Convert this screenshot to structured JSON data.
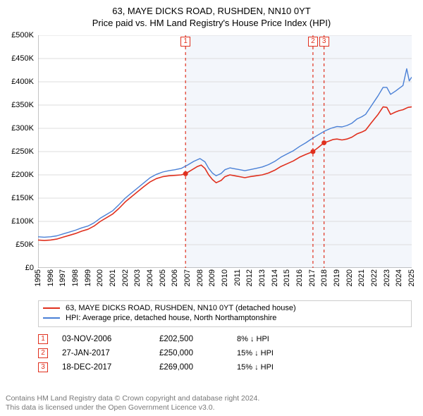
{
  "title": "63, MAYE DICKS ROAD, RUSHDEN, NN10 0YT",
  "subtitle": "Price paid vs. HM Land Registry's House Price Index (HPI)",
  "chart": {
    "type": "line",
    "x_index_min": 0,
    "x_index_max": 30,
    "ylim": [
      0,
      500000
    ],
    "ytick_step": 50000,
    "x_ticks": [
      "1995",
      "1996",
      "1997",
      "1998",
      "1999",
      "2000",
      "2001",
      "2002",
      "2003",
      "2004",
      "2005",
      "2006",
      "2007",
      "2008",
      "2009",
      "2010",
      "2011",
      "2012",
      "2013",
      "2014",
      "2015",
      "2016",
      "2017",
      "2018",
      "2019",
      "2020",
      "2021",
      "2022",
      "2023",
      "2024",
      "2025"
    ],
    "y_tick_labels": [
      "£0",
      "£50K",
      "£100K",
      "£150K",
      "£200K",
      "£250K",
      "£300K",
      "£350K",
      "£400K",
      "£450K",
      "£500K"
    ],
    "background_color": "#ffffff",
    "grid_color": "#dcdcdc",
    "axis_color": "#888888",
    "plotband": {
      "from_index": 11.8,
      "to_index": 30,
      "fill": "#f3f6fb"
    },
    "markers": [
      {
        "label": "1",
        "x_index": 11.84,
        "sale_y": 202500,
        "color": "#e0301e"
      },
      {
        "label": "2",
        "x_index": 22.07,
        "sale_y": 250000,
        "color": "#e0301e"
      },
      {
        "label": "3",
        "x_index": 22.96,
        "sale_y": 269000,
        "color": "#e0301e"
      }
    ],
    "series": [
      {
        "name": "63, MAYE DICKS ROAD, RUSHDEN, NN10 0YT (detached house)",
        "color": "#e0301e",
        "line_width": 1.6,
        "points": [
          {
            "x": 0.0,
            "y": 60000
          },
          {
            "x": 0.5,
            "y": 59000
          },
          {
            "x": 1.0,
            "y": 60000
          },
          {
            "x": 1.5,
            "y": 62000
          },
          {
            "x": 2.0,
            "y": 66000
          },
          {
            "x": 2.5,
            "y": 70000
          },
          {
            "x": 3.0,
            "y": 74000
          },
          {
            "x": 3.5,
            "y": 79000
          },
          {
            "x": 4.0,
            "y": 83000
          },
          {
            "x": 4.5,
            "y": 90000
          },
          {
            "x": 5.0,
            "y": 100000
          },
          {
            "x": 5.5,
            "y": 108000
          },
          {
            "x": 6.0,
            "y": 116000
          },
          {
            "x": 6.5,
            "y": 128000
          },
          {
            "x": 7.0,
            "y": 142000
          },
          {
            "x": 7.5,
            "y": 153000
          },
          {
            "x": 8.0,
            "y": 164000
          },
          {
            "x": 8.5,
            "y": 175000
          },
          {
            "x": 9.0,
            "y": 185000
          },
          {
            "x": 9.5,
            "y": 192000
          },
          {
            "x": 10.0,
            "y": 196000
          },
          {
            "x": 10.5,
            "y": 198000
          },
          {
            "x": 11.0,
            "y": 199000
          },
          {
            "x": 11.5,
            "y": 200000
          },
          {
            "x": 11.84,
            "y": 202500
          },
          {
            "x": 12.3,
            "y": 210000
          },
          {
            "x": 12.8,
            "y": 218000
          },
          {
            "x": 13.1,
            "y": 221000
          },
          {
            "x": 13.4,
            "y": 214000
          },
          {
            "x": 13.7,
            "y": 200000
          },
          {
            "x": 14.0,
            "y": 190000
          },
          {
            "x": 14.3,
            "y": 183000
          },
          {
            "x": 14.7,
            "y": 188000
          },
          {
            "x": 15.0,
            "y": 196000
          },
          {
            "x": 15.4,
            "y": 200000
          },
          {
            "x": 15.8,
            "y": 198000
          },
          {
            "x": 16.2,
            "y": 196000
          },
          {
            "x": 16.6,
            "y": 194000
          },
          {
            "x": 17.0,
            "y": 196000
          },
          {
            "x": 17.5,
            "y": 198000
          },
          {
            "x": 18.0,
            "y": 200000
          },
          {
            "x": 18.5,
            "y": 204000
          },
          {
            "x": 19.0,
            "y": 210000
          },
          {
            "x": 19.5,
            "y": 218000
          },
          {
            "x": 20.0,
            "y": 224000
          },
          {
            "x": 20.5,
            "y": 230000
          },
          {
            "x": 21.0,
            "y": 238000
          },
          {
            "x": 21.5,
            "y": 244000
          },
          {
            "x": 22.07,
            "y": 250000
          },
          {
            "x": 22.5,
            "y": 259000
          },
          {
            "x": 22.96,
            "y": 269000
          },
          {
            "x": 23.3,
            "y": 272000
          },
          {
            "x": 23.7,
            "y": 276000
          },
          {
            "x": 24.0,
            "y": 277000
          },
          {
            "x": 24.4,
            "y": 275000
          },
          {
            "x": 24.8,
            "y": 277000
          },
          {
            "x": 25.2,
            "y": 281000
          },
          {
            "x": 25.6,
            "y": 288000
          },
          {
            "x": 26.0,
            "y": 292000
          },
          {
            "x": 26.3,
            "y": 296000
          },
          {
            "x": 26.7,
            "y": 310000
          },
          {
            "x": 27.0,
            "y": 320000
          },
          {
            "x": 27.3,
            "y": 330000
          },
          {
            "x": 27.7,
            "y": 346000
          },
          {
            "x": 28.0,
            "y": 345000
          },
          {
            "x": 28.3,
            "y": 330000
          },
          {
            "x": 28.7,
            "y": 335000
          },
          {
            "x": 29.0,
            "y": 338000
          },
          {
            "x": 29.3,
            "y": 340000
          },
          {
            "x": 29.7,
            "y": 345000
          },
          {
            "x": 30.0,
            "y": 346000
          }
        ]
      },
      {
        "name": "HPI: Average price, detached house, North Northamptonshire",
        "color": "#4a80d6",
        "line_width": 1.4,
        "points": [
          {
            "x": 0.0,
            "y": 67000
          },
          {
            "x": 0.5,
            "y": 66000
          },
          {
            "x": 1.0,
            "y": 67000
          },
          {
            "x": 1.5,
            "y": 69000
          },
          {
            "x": 2.0,
            "y": 73000
          },
          {
            "x": 2.5,
            "y": 77000
          },
          {
            "x": 3.0,
            "y": 81000
          },
          {
            "x": 3.5,
            "y": 86000
          },
          {
            "x": 4.0,
            "y": 90000
          },
          {
            "x": 4.5,
            "y": 97000
          },
          {
            "x": 5.0,
            "y": 107000
          },
          {
            "x": 5.5,
            "y": 115000
          },
          {
            "x": 6.0,
            "y": 123000
          },
          {
            "x": 6.5,
            "y": 136000
          },
          {
            "x": 7.0,
            "y": 150000
          },
          {
            "x": 7.5,
            "y": 161000
          },
          {
            "x": 8.0,
            "y": 172000
          },
          {
            "x": 8.5,
            "y": 183000
          },
          {
            "x": 9.0,
            "y": 194000
          },
          {
            "x": 9.5,
            "y": 201000
          },
          {
            "x": 10.0,
            "y": 206000
          },
          {
            "x": 10.5,
            "y": 209000
          },
          {
            "x": 11.0,
            "y": 211000
          },
          {
            "x": 11.5,
            "y": 214000
          },
          {
            "x": 12.0,
            "y": 221000
          },
          {
            "x": 12.5,
            "y": 229000
          },
          {
            "x": 13.0,
            "y": 235000
          },
          {
            "x": 13.4,
            "y": 228000
          },
          {
            "x": 13.7,
            "y": 214000
          },
          {
            "x": 14.0,
            "y": 204000
          },
          {
            "x": 14.3,
            "y": 198000
          },
          {
            "x": 14.7,
            "y": 203000
          },
          {
            "x": 15.0,
            "y": 211000
          },
          {
            "x": 15.4,
            "y": 215000
          },
          {
            "x": 15.8,
            "y": 213000
          },
          {
            "x": 16.2,
            "y": 211000
          },
          {
            "x": 16.6,
            "y": 209000
          },
          {
            "x": 17.0,
            "y": 211000
          },
          {
            "x": 17.5,
            "y": 214000
          },
          {
            "x": 18.0,
            "y": 217000
          },
          {
            "x": 18.5,
            "y": 222000
          },
          {
            "x": 19.0,
            "y": 229000
          },
          {
            "x": 19.5,
            "y": 238000
          },
          {
            "x": 20.0,
            "y": 245000
          },
          {
            "x": 20.5,
            "y": 252000
          },
          {
            "x": 21.0,
            "y": 261000
          },
          {
            "x": 21.5,
            "y": 269000
          },
          {
            "x": 22.0,
            "y": 278000
          },
          {
            "x": 22.5,
            "y": 286000
          },
          {
            "x": 23.0,
            "y": 294000
          },
          {
            "x": 23.5,
            "y": 300000
          },
          {
            "x": 24.0,
            "y": 304000
          },
          {
            "x": 24.4,
            "y": 303000
          },
          {
            "x": 24.8,
            "y": 306000
          },
          {
            "x": 25.2,
            "y": 311000
          },
          {
            "x": 25.6,
            "y": 320000
          },
          {
            "x": 26.0,
            "y": 325000
          },
          {
            "x": 26.3,
            "y": 330000
          },
          {
            "x": 26.7,
            "y": 346000
          },
          {
            "x": 27.0,
            "y": 358000
          },
          {
            "x": 27.3,
            "y": 370000
          },
          {
            "x": 27.7,
            "y": 388000
          },
          {
            "x": 28.0,
            "y": 388000
          },
          {
            "x": 28.3,
            "y": 373000
          },
          {
            "x": 28.7,
            "y": 380000
          },
          {
            "x": 29.0,
            "y": 386000
          },
          {
            "x": 29.3,
            "y": 392000
          },
          {
            "x": 29.6,
            "y": 428000
          },
          {
            "x": 29.8,
            "y": 402000
          },
          {
            "x": 30.0,
            "y": 410000
          }
        ]
      }
    ]
  },
  "legend": {
    "items": [
      {
        "color": "#e0301e",
        "label": "63, MAYE DICKS ROAD, RUSHDEN, NN10 0YT (detached house)"
      },
      {
        "color": "#4a80d6",
        "label": "HPI: Average price, detached house, North Northamptonshire"
      }
    ]
  },
  "sales": [
    {
      "n": "1",
      "color": "#e0301e",
      "date": "03-NOV-2006",
      "price": "£202,500",
      "delta": "8% ↓ HPI"
    },
    {
      "n": "2",
      "color": "#e0301e",
      "date": "27-JAN-2017",
      "price": "£250,000",
      "delta": "15% ↓ HPI"
    },
    {
      "n": "3",
      "color": "#e0301e",
      "date": "18-DEC-2017",
      "price": "£269,000",
      "delta": "15% ↓ HPI"
    }
  ],
  "footer": {
    "line1": "Contains HM Land Registry data © Crown copyright and database right 2024.",
    "line2": "This data is licensed under the Open Government Licence v3.0."
  }
}
